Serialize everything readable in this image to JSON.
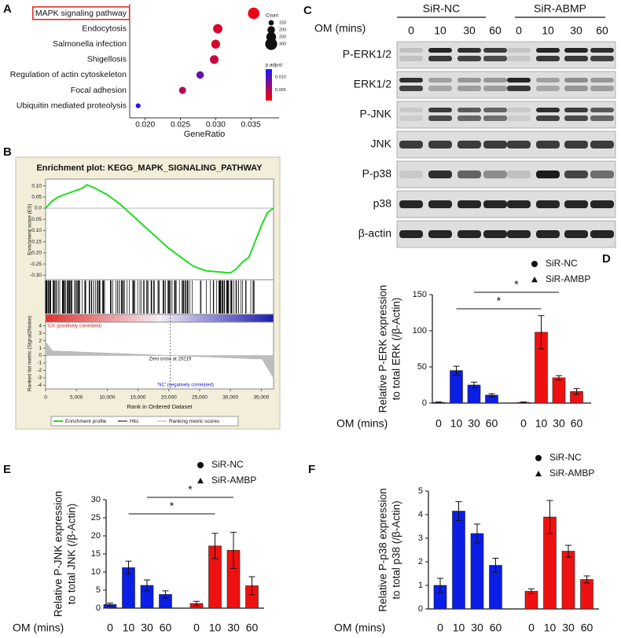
{
  "panel_labels": [
    "A",
    "B",
    "C",
    "D",
    "E",
    "F"
  ],
  "blot": {
    "groups": [
      "SiR-NC",
      "SiR-ABMP"
    ],
    "time_label": "OM (mins)",
    "times": [
      "0",
      "10",
      "30",
      "60"
    ],
    "rows": [
      "P-ERK1/2",
      "ERK1/2",
      "P-JNK",
      "JNK",
      "P-p38",
      "p38",
      "β-actin"
    ]
  },
  "chart_data": [
    {
      "type": "dot",
      "categories": [
        "MAPK signaling pathway",
        "Endocytosis",
        "Salmonella infection",
        "Shigellosis",
        "Regulation of actin cytoskeleton",
        "Focal adhesion",
        "Ubiquitin mediated proteolysis"
      ],
      "values": [
        0.0354,
        0.0303,
        0.03,
        0.0298,
        0.0278,
        0.0253,
        0.019
      ],
      "count": [
        290,
        240,
        230,
        225,
        200,
        190,
        140
      ],
      "p_adjust": [
        0.002,
        0.003,
        0.003,
        0.004,
        0.009,
        0.005,
        0.012
      ],
      "xlabel": "GeneRatio",
      "xlim": [
        0.0178,
        0.039
      ],
      "xticks": [
        {
          "value": 0.02,
          "label": "0.020"
        },
        {
          "value": 0.025,
          "label": "0.025"
        },
        {
          "value": 0.03,
          "label": "0.030"
        },
        {
          "value": 0.035,
          "label": "0.035"
        }
      ],
      "size_title": "Count",
      "size_ticks": [
        150,
        200,
        250,
        300
      ],
      "color_title": "p.adjust",
      "clim": [
        0.001,
        0.013
      ],
      "cticks": [
        {
          "value": 0.01,
          "label": "0.010"
        },
        {
          "value": 0.005,
          "label": "0.005"
        }
      ],
      "colors": [
        "#ff0000",
        "#1a1aff"
      ],
      "highlight": 0,
      "highlight_color": "#e02020"
    },
    {
      "type": "gsea",
      "title": "Enrichment plot: KEGG_MAPK_SIGNALING_PATHWAY",
      "x": [
        0,
        1000,
        2000,
        3000,
        4000,
        5000,
        6000,
        6700,
        8000,
        10000,
        12000,
        14000,
        16000,
        18000,
        20000,
        22000,
        24000,
        26000,
        28000,
        30000,
        31000,
        32000,
        33000,
        34000,
        35000,
        36000,
        37000
      ],
      "values": [
        0,
        0.03,
        0.05,
        0.06,
        0.07,
        0.08,
        0.09,
        0.105,
        0.09,
        0.06,
        0.02,
        -0.03,
        -0.08,
        -0.13,
        -0.18,
        -0.22,
        -0.26,
        -0.28,
        -0.285,
        -0.29,
        -0.27,
        -0.24,
        -0.22,
        -0.15,
        -0.08,
        -0.02,
        0
      ],
      "color": "#22dd22",
      "xlim": [
        0,
        37000
      ],
      "xticks": [
        0,
        {
          "value": 5000,
          "label": "5,000"
        },
        {
          "value": 10000,
          "label": "10,000"
        },
        {
          "value": 15000,
          "label": "15,000"
        },
        {
          "value": 20000,
          "label": "20,000"
        },
        {
          "value": 25000,
          "label": "25,000"
        },
        {
          "value": 30000,
          "label": "30,000"
        },
        {
          "value": 35000,
          "label": "35,000"
        }
      ],
      "ylim": [
        -0.32,
        0.13
      ],
      "yticks": [
        {
          "value": 0.1,
          "label": "0.10"
        },
        0.05,
        {
          "value": 0,
          "label": "0.0"
        },
        -0.05,
        {
          "value": -0.1,
          "label": "-0.10"
        },
        -0.15,
        {
          "value": -0.2,
          "label": "-0.20"
        },
        -0.25,
        {
          "value": -0.3,
          "label": "-0.30"
        }
      ],
      "ylabel": "Enrichment score (ES)",
      "metric_ylim": [
        -4.5,
        4.5
      ],
      "metric_yticks": [
        4,
        3,
        2,
        1,
        0,
        -1,
        -2,
        -3,
        -4
      ],
      "metric_ylabel": "Ranked list metric (Signal2Noise)",
      "xlabel": "Rank in Ordered Dataset",
      "zero_cross": 20219,
      "zero_cross_label": "Zero cross at 20219",
      "pos_label": "'CA' (positively correlated)",
      "neg_label": "'NC' (negatively correlated)",
      "legend": [
        "Enrichment profile",
        "Hits",
        "Ranking metric scores"
      ]
    },
    {
      "type": "bar",
      "categories": [
        "0",
        "10",
        "30",
        "60"
      ],
      "xlabel": "OM (mins)",
      "ylabel": [
        "Relative P-ERK expression",
        "to total ERK (/β-Actin)"
      ],
      "ylim": [
        0,
        150
      ],
      "yticks": [
        0,
        50,
        100,
        150
      ],
      "series": [
        {
          "name": "SiR-NC",
          "color": "#0a1ee6",
          "marker": "circle",
          "values": [
            1,
            45,
            25,
            11
          ],
          "errors": [
            0.5,
            6,
            4,
            2
          ]
        },
        {
          "name": "SiR-AMBP",
          "color": "#ee1111",
          "marker": "triangle",
          "values": [
            1,
            98,
            35,
            16
          ],
          "errors": [
            0.5,
            23,
            3,
            4
          ]
        }
      ],
      "annotations": [
        "*",
        "*"
      ]
    },
    {
      "type": "bar",
      "categories": [
        "0",
        "10",
        "30",
        "60"
      ],
      "xlabel": "OM (mins)",
      "ylabel": [
        "Relative P-JNK expression",
        "to total JNK (/β-Actin)"
      ],
      "ylim": [
        0,
        30
      ],
      "yticks": [
        0,
        5,
        10,
        15,
        20,
        25,
        30
      ],
      "series": [
        {
          "name": "SiR-NC",
          "color": "#0a1ee6",
          "marker": "circle",
          "values": [
            1,
            11.2,
            6.3,
            3.8
          ],
          "errors": [
            0.4,
            1.8,
            1.5,
            1
          ]
        },
        {
          "name": "SiR-AMBP",
          "color": "#ee1111",
          "marker": "triangle",
          "values": [
            1.3,
            17.2,
            16,
            6.2
          ],
          "errors": [
            0.6,
            3.5,
            5,
            2.5
          ]
        }
      ],
      "annotations": [
        "*",
        "*"
      ]
    },
    {
      "type": "bar",
      "categories": [
        "0",
        "10",
        "30",
        "60"
      ],
      "xlabel": "OM (mins)",
      "ylabel": [
        "Relative P-p38 expression",
        "to total p38 (/β-Actin)"
      ],
      "ylim": [
        0,
        5
      ],
      "yticks": [
        0,
        1,
        2,
        3,
        4,
        5
      ],
      "series": [
        {
          "name": "SiR-NC",
          "color": "#0a1ee6",
          "marker": "circle",
          "values": [
            1,
            4.15,
            3.2,
            1.85
          ],
          "errors": [
            0.3,
            0.4,
            0.4,
            0.3
          ]
        },
        {
          "name": "SiR-AMBP",
          "color": "#ee1111",
          "marker": "triangle",
          "values": [
            0.75,
            3.9,
            2.45,
            1.25
          ],
          "errors": [
            0.1,
            0.7,
            0.25,
            0.15
          ]
        }
      ],
      "annotations": []
    }
  ]
}
